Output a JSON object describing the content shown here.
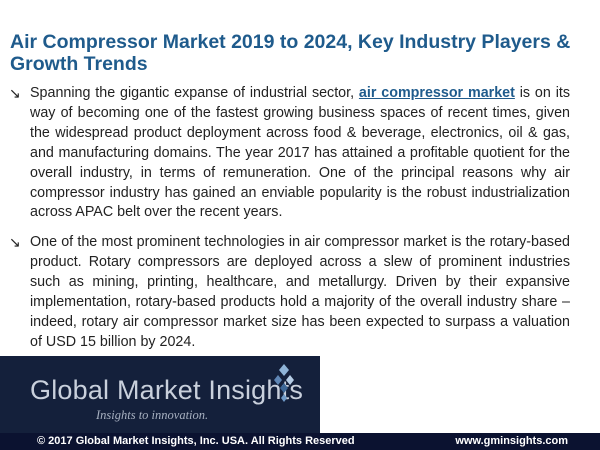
{
  "title": "Air Compressor Market 2019 to 2024, Key Industry Players & Growth Trends",
  "bullet_icon": "arrow-down-right-icon",
  "bullets": [
    {
      "before_link": "Spanning the gigantic expanse of industrial sector, ",
      "link": "air compressor market",
      "after_link": " is on its way of becoming one of the fastest growing business spaces of recent times, given the widespread product deployment across food & beverage, electronics, oil & gas, and manufacturing domains. The year 2017 has attained a profitable quotient for the overall industry, in terms of remuneration. One of the principal reasons why air compressor industry has gained an enviable popularity is the robust industrialization across APAC belt over the recent years."
    },
    {
      "text": "One of the most prominent technologies in air compressor market is the rotary-based product. Rotary compressors are deployed across a slew of prominent industries such as mining, printing, healthcare, and metallurgy. Driven by their expansive implementation, rotary-based products hold a majority of the overall industry share – indeed, rotary air compressor market size has been expected to surpass a valuation of USD 15 billion by 2024."
    }
  ],
  "logo": {
    "name": "Global Market Insights",
    "tagline": "Insights to innovation.",
    "icon": "diamond-dots-logo-icon"
  },
  "footer": {
    "copyright": "© 2017 Global Market Insights, Inc. USA. All Rights Reserved",
    "website": "www.gminsights.com"
  },
  "colors": {
    "title": "#1f5b8c",
    "logo_background": "#14203b",
    "footer_bar": "#0b1230"
  }
}
